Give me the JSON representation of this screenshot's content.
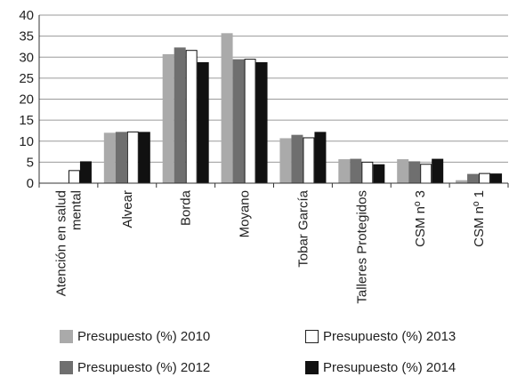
{
  "chart_data": {
    "type": "bar",
    "categories": [
      "Atención en salud mental",
      "Alvear",
      "Borda",
      "Moyano",
      "Tobar García",
      "Talleres Protegidos",
      "CSM nº 3",
      "CSM nº 1"
    ],
    "category_lines": [
      [
        "Atención en salud",
        "mental"
      ],
      [
        "Alvear"
      ],
      [
        "Borda"
      ],
      [
        "Moyano"
      ],
      [
        "Tobar García"
      ],
      [
        "Talleres Protegidos"
      ],
      [
        "CSM nº 3"
      ],
      [
        "CSM nº 1"
      ]
    ],
    "series": [
      {
        "name": "Presupuesto (%) 2010",
        "color": "#aaaaaa",
        "values": [
          0,
          12.0,
          30.7,
          35.7,
          10.7,
          5.7,
          5.7,
          0.7
        ]
      },
      {
        "name": "Presupuesto (%) 2012",
        "color": "#6f6f6f",
        "values": [
          0,
          12.2,
          32.3,
          29.5,
          11.5,
          5.8,
          5.2,
          2.2
        ]
      },
      {
        "name": "Presupuesto (%) 2013",
        "color": "#ffffff",
        "values": [
          3.0,
          12.2,
          31.6,
          29.5,
          10.8,
          5.0,
          4.5,
          2.3
        ]
      },
      {
        "name": "Presupuesto (%) 2014",
        "color": "#111111",
        "values": [
          5.2,
          12.2,
          28.8,
          28.8,
          12.2,
          4.5,
          5.8,
          2.3
        ]
      }
    ],
    "ylim": [
      0,
      40
    ],
    "yticks": [
      "0",
      "5",
      "10",
      "15",
      "20",
      "25",
      "30",
      "35",
      "40"
    ],
    "grid": true,
    "legend_placement": "bottom"
  },
  "legend": {
    "items": [
      {
        "label": "Presupuesto (%) 2010",
        "color": "#aaaaaa"
      },
      {
        "label": "Presupuesto (%) 2013",
        "color": "#ffffff"
      },
      {
        "label": "Presupuesto (%) 2012",
        "color": "#6f6f6f"
      },
      {
        "label": "Presupuesto (%) 2014",
        "color": "#111111"
      }
    ]
  }
}
